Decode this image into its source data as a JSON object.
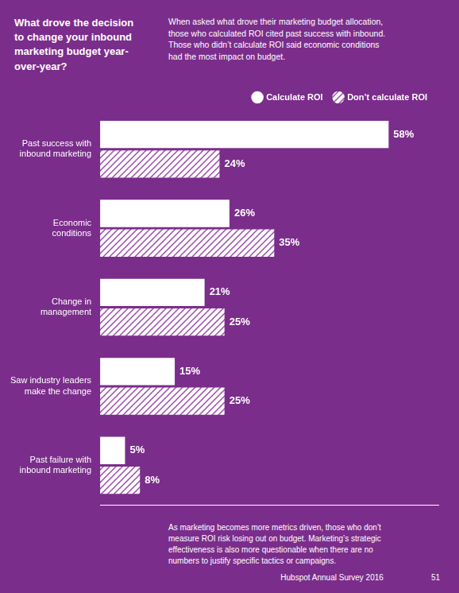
{
  "chart_data": {
    "type": "bar",
    "orientation": "horizontal",
    "title": "What drove the decision\nto change your inbound\nmarketing budget year-\nover-year?",
    "subtitle": "When asked what drove their marketing budget allocation,\nthose who calculated ROI cited past success with inbound.\nThose who didn’t calculate ROI said economic conditions\nhad the most impact on budget.",
    "annotations": [
      "As marketing becomes more metrics driven, those who don’t\nmeasure ROI risk losing out on budget. Marketing’s strategic\neffectiveness is also more questionable when there are no\nnumbers to justify specific tactics or campaigns.",
      "Hubspot Annual Survey 2016",
      "51"
    ],
    "categories": [
      "Past success with\ninbound marketing",
      "Economic\nconditions",
      "Change in\nmanagement",
      "Saw industry leaders\nmake the change",
      "Past failure with\ninbound marketing"
    ],
    "series": [
      {
        "name": "Calculate ROI",
        "color": "#ffffff",
        "values": [
          58,
          26,
          21,
          15,
          5
        ],
        "value_labels": [
          "58%",
          "26%",
          "21%",
          "15%",
          "5%"
        ]
      },
      {
        "name": "Don’t calculate ROI",
        "color": "#ffffff",
        "values": [
          24,
          35,
          25,
          25,
          8
        ],
        "value_labels": [
          "24%",
          "35%",
          "25%",
          "25%",
          "8%"
        ]
      }
    ],
    "xlim": [
      0,
      68
    ],
    "tick_labels": "y",
    "grid": false,
    "legend": "upper right",
    "data_labels": true
  }
}
